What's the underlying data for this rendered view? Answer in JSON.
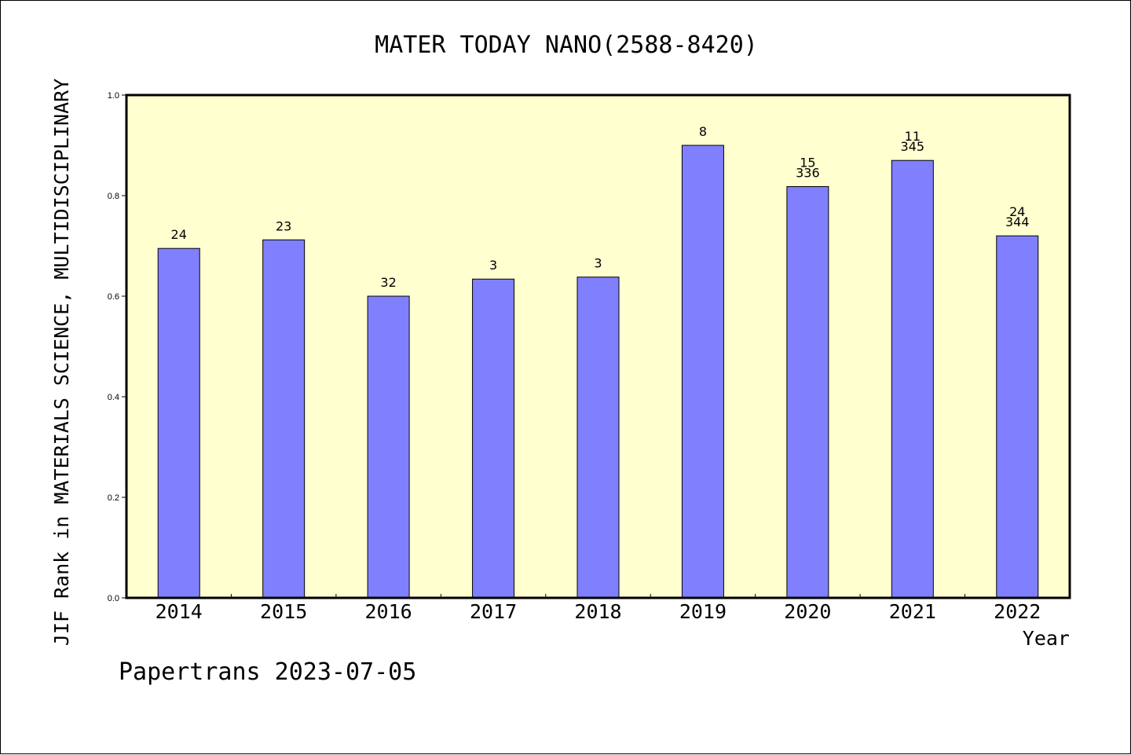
{
  "chart_data": {
    "type": "bar",
    "title": "MATER TODAY NANO(2588-8420)",
    "xlabel": "Year",
    "ylabel": "JIF Rank in MATERIALS SCIENCE, MULTIDISCIPLINARY",
    "ylim": [
      0,
      1.0
    ],
    "yticks": [
      "0.0",
      "0.2",
      "0.4",
      "0.6",
      "0.8",
      "1.0"
    ],
    "grid": false,
    "categories": [
      "2014",
      "2015",
      "2016",
      "2017",
      "2018",
      "2019",
      "2020",
      "2021",
      "2022"
    ],
    "values": [
      0.695,
      0.712,
      0.6,
      0.634,
      0.638,
      0.9,
      0.818,
      0.87,
      0.72
    ],
    "labels": [
      [
        "24"
      ],
      [
        "23"
      ],
      [
        "32"
      ],
      [
        "3"
      ],
      [
        "3"
      ],
      [
        "8"
      ],
      [
        "15",
        "336"
      ],
      [
        "11",
        "345"
      ],
      [
        "24",
        "344"
      ]
    ],
    "colors": {
      "plot_bg": "#ffffd0",
      "bar": "#8080ff"
    }
  },
  "footer": "Papertrans 2023-07-05"
}
